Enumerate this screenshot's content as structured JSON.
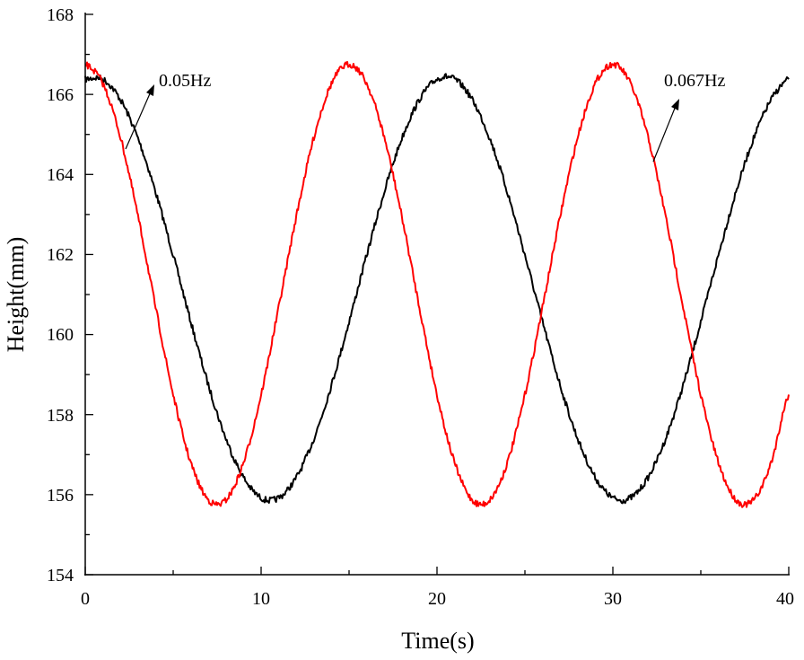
{
  "chart_data": {
    "type": "line",
    "title": "",
    "xlabel": "Time(s)",
    "ylabel": "Height(mm)",
    "xlim": [
      0,
      40
    ],
    "ylim": [
      154,
      168
    ],
    "xticks": [
      "0",
      "10",
      "20",
      "30",
      "40"
    ],
    "yticks": [
      "154",
      "156",
      "158",
      "160",
      "162",
      "164",
      "166",
      "168"
    ],
    "grid": false,
    "x": [
      0,
      1,
      2,
      3,
      4,
      5,
      6,
      7,
      8,
      9,
      10,
      11,
      12,
      13,
      14,
      15,
      16,
      17,
      18,
      19,
      20,
      21,
      22,
      23,
      24,
      25,
      26,
      27,
      28,
      29,
      30,
      31,
      32,
      33,
      34,
      35,
      36,
      37,
      38,
      39,
      40
    ],
    "series": [
      {
        "name": "0.05Hz",
        "color": "#000000",
        "values": [
          166.38,
          166.38,
          165.87,
          164.9,
          163.56,
          161.98,
          160.32,
          158.74,
          157.4,
          156.43,
          155.92,
          155.92,
          156.43,
          157.4,
          158.74,
          160.32,
          161.98,
          163.56,
          164.9,
          165.87,
          166.38,
          166.38,
          165.87,
          164.9,
          163.56,
          161.98,
          160.32,
          158.74,
          157.4,
          156.43,
          155.92,
          155.92,
          156.43,
          157.4,
          158.74,
          160.32,
          161.98,
          163.56,
          164.9,
          165.87,
          166.38
        ]
      },
      {
        "name": "0.067Hz",
        "color": "#ff0000",
        "values": [
          166.75,
          166.27,
          164.93,
          162.95,
          160.68,
          158.5,
          156.8,
          155.87,
          155.87,
          156.8,
          158.5,
          160.68,
          162.95,
          164.93,
          166.27,
          166.75,
          166.27,
          164.93,
          162.95,
          160.68,
          158.5,
          156.8,
          155.87,
          155.87,
          156.8,
          158.5,
          160.68,
          162.95,
          164.93,
          166.27,
          166.75,
          166.27,
          164.93,
          162.95,
          160.68,
          158.5,
          156.8,
          155.87,
          155.87,
          156.8,
          158.5
        ]
      }
    ],
    "annotations": [
      {
        "text": "0.05Hz",
        "series": "0.05Hz"
      },
      {
        "text": "0.067Hz",
        "series": "0.067Hz"
      }
    ]
  }
}
